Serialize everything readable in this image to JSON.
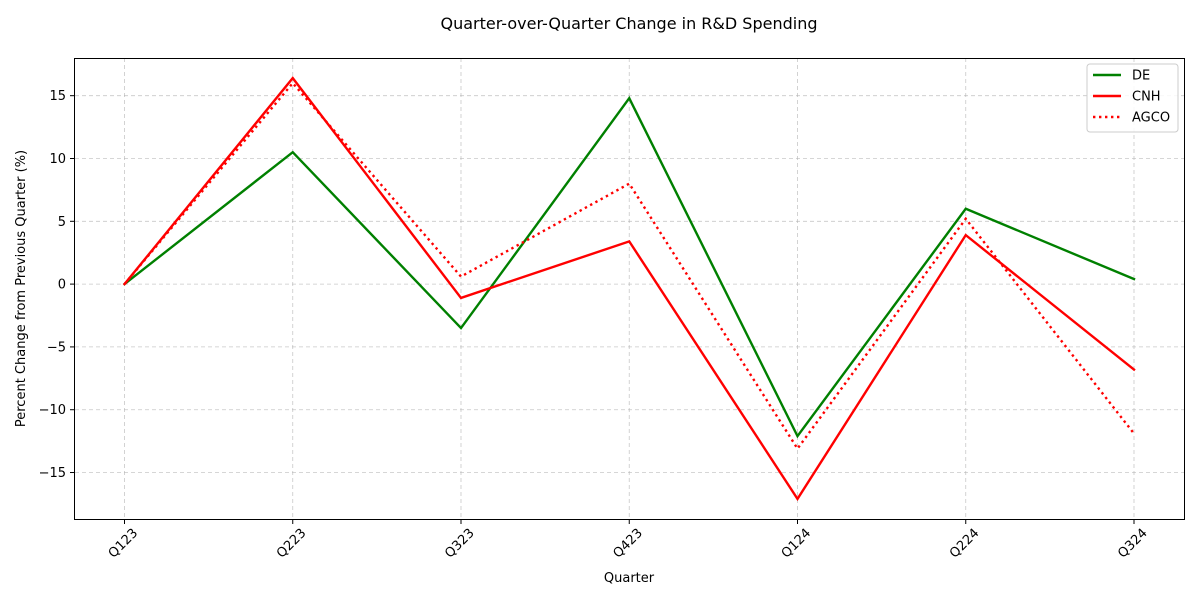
{
  "chart_data": {
    "type": "line",
    "title": "Quarter-over-Quarter Change in R&D Spending",
    "xlabel": "Quarter",
    "ylabel": "Percent Change from Previous Quarter (%)",
    "categories": [
      "Q123",
      "Q223",
      "Q323",
      "Q423",
      "Q124",
      "Q224",
      "Q324"
    ],
    "ylim": [
      -18.7,
      18.0
    ],
    "yticks": [
      -15,
      -10,
      -5,
      0,
      5,
      10,
      15
    ],
    "ytick_labels": [
      "−15",
      "−10",
      "−5",
      "0",
      "5",
      "10",
      "15"
    ],
    "grid": true,
    "legend_position": "top-right",
    "series": [
      {
        "name": "DE",
        "color": "#008000",
        "style": "solid",
        "values": [
          0,
          10.5,
          -3.5,
          14.8,
          -12.1,
          6.0,
          0.4
        ]
      },
      {
        "name": "CNH",
        "color": "#ff0000",
        "style": "solid",
        "values": [
          0,
          16.4,
          -1.1,
          3.4,
          -17.1,
          3.9,
          -6.8
        ]
      },
      {
        "name": "AGCO",
        "color": "#ff0000",
        "style": "dotted",
        "values": [
          0,
          16.0,
          0.6,
          8.0,
          -13.1,
          5.2,
          -11.9
        ]
      }
    ]
  }
}
